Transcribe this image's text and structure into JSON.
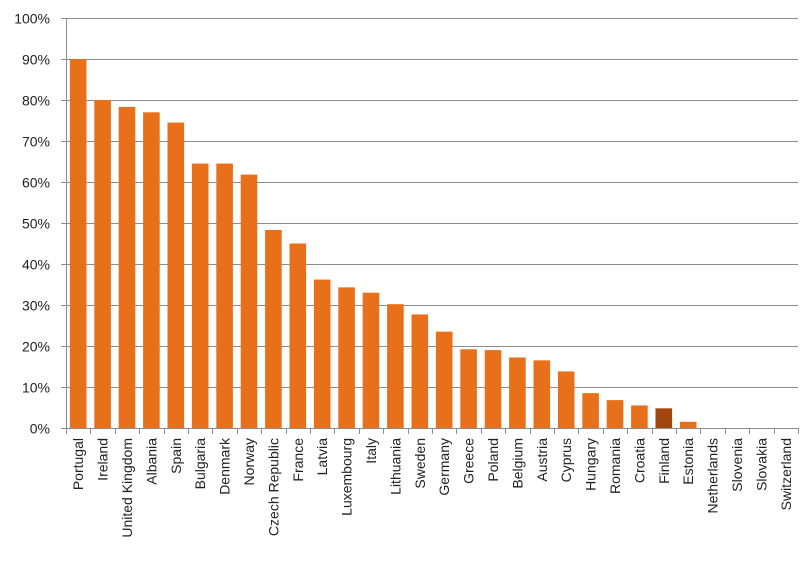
{
  "chart_data": {
    "type": "bar",
    "title": "",
    "xlabel": "",
    "ylabel": "",
    "ylim": [
      0,
      100
    ],
    "y_unit": "%",
    "y_ticks": [
      "0%",
      "10%",
      "20%",
      "30%",
      "40%",
      "50%",
      "60%",
      "70%",
      "80%",
      "90%",
      "100%"
    ],
    "grid": "horizontal",
    "legend": "none",
    "categories": [
      "Portugal",
      "Ireland",
      "United Kingdom",
      "Albania",
      "Spain",
      "Bulgaria",
      "Denmark",
      "Norway",
      "Czech Republic",
      "France",
      "Latvia",
      "Luxembourg",
      "Italy",
      "Lithuania",
      "Sweden",
      "Germany",
      "Greece",
      "Poland",
      "Belgium",
      "Austria",
      "Cyprus",
      "Hungary",
      "Romania",
      "Croatia",
      "Finland",
      "Estonia",
      "Netherlands",
      "Slovenia",
      "Slovakia",
      "Switzerland"
    ],
    "values": [
      90,
      80,
      78.3,
      77,
      74.5,
      64.5,
      64.5,
      61.8,
      48.3,
      45,
      36.2,
      34.3,
      33,
      30.2,
      27.7,
      23.5,
      19.2,
      19,
      17.2,
      16.5,
      13.8,
      8.5,
      6.8,
      5.5,
      4.8,
      1.5,
      0,
      0,
      0,
      0
    ],
    "colors": {
      "bar": "#e8701a",
      "highlight": "#a1470d",
      "highlight_category": "Finland"
    }
  }
}
